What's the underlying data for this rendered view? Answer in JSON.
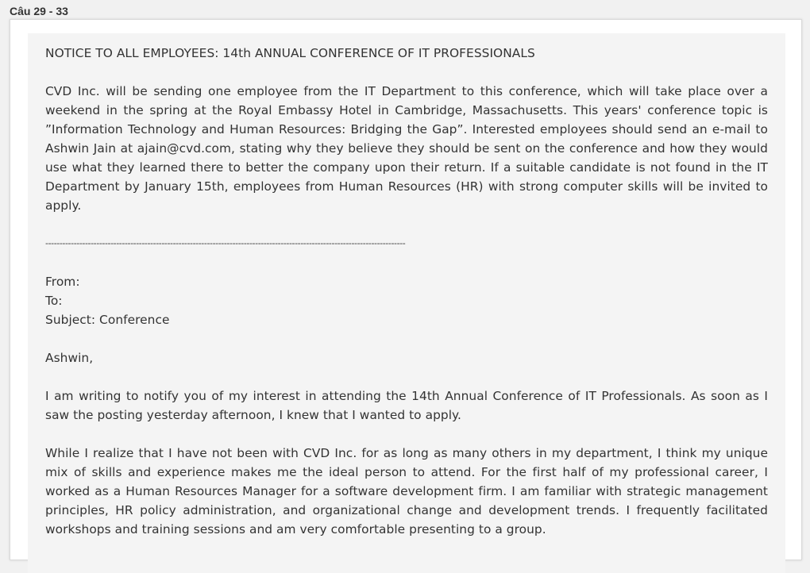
{
  "question_range": "Câu 29 - 33",
  "notice": {
    "title": "NOTICE TO ALL EMPLOYEES: 14th ANNUAL CONFERENCE OF IT PROFESSIONALS",
    "body": "CVD Inc. will be sending one employee from the IT Department to this conference, which will take place over a weekend in the spring at the Royal Embassy Hotel in Cambridge, Massachusetts. This years' conference topic is ”Information Technology and Human Resources: Bridging the Gap”. Interested employees should send an e-mail to Ashwin Jain at ajain@cvd.com, stating why they believe they should be sent on the conference and how they would use what they learned there to better the company upon their return. If a suitable candidate is not found in the IT Department by January 15th, employees from Human Resources (HR) with strong computer skills will be invited to apply."
  },
  "separator": "-------------------------------------------------------------------------------------------------------------------------------",
  "email": {
    "from_label": "From:",
    "to_label": "To:",
    "subject_label": "Subject: Conference",
    "greeting": "Ashwin,",
    "paragraph_1": "I am writing to notify you of my interest in attending the 14th Annual Conference of IT Professionals. As soon as I saw the posting yesterday afternoon, I knew that I wanted to apply.",
    "paragraph_2": "While I realize that I have not been with CVD Inc. for as long as many others in my department, I think my unique mix of skills and experience makes me the ideal person to attend. For the first half of my professional career, I worked as a Human Resources Manager for a software development firm. I am familiar with strategic management principles, HR policy administration, and organizational change and development trends. I frequently facilitated workshops and training sessions and am very comfortable presenting to a group."
  }
}
